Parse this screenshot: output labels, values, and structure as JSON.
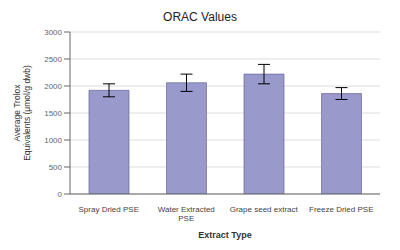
{
  "chart_data": {
    "type": "bar",
    "title": "ORAC Values",
    "xlabel": "Extract Type",
    "ylabel": "Average Trolox\nEquivalents (μmol/g dwb)",
    "categories": [
      "Spray Dried PSE",
      "Water Extracted\nPSE",
      "Grape seed extract",
      "Freeze Dried PSE"
    ],
    "values": [
      1920,
      2060,
      2220,
      1860
    ],
    "errors": [
      120,
      160,
      180,
      110
    ],
    "color": "#9999cc",
    "ylim": [
      0,
      3000
    ],
    "yticks": [
      0,
      500,
      1000,
      1500,
      2000,
      2500,
      3000
    ],
    "grid": true
  }
}
